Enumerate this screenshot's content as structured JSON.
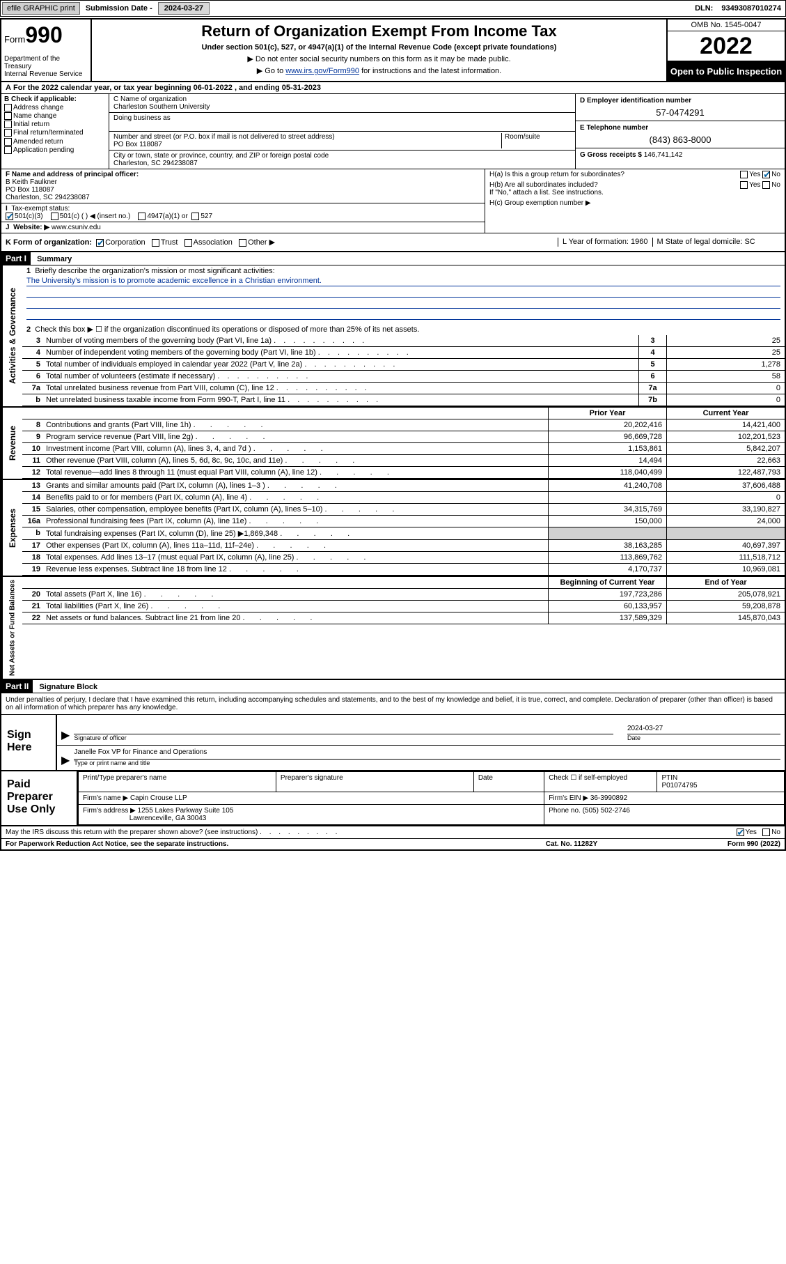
{
  "topbar": {
    "efile": "efile GRAPHIC print",
    "submission_label": "Submission Date - ",
    "submission_date": "2024-03-27",
    "dln_label": "DLN: ",
    "dln": "93493087010274"
  },
  "header": {
    "form_small": "Form",
    "form_big": "990",
    "title": "Return of Organization Exempt From Income Tax",
    "subtitle": "Under section 501(c), 527, or 4947(a)(1) of the Internal Revenue Code (except private foundations)",
    "note1": "▶ Do not enter social security numbers on this form as it may be made public.",
    "note2_pre": "▶ Go to ",
    "note2_link": "www.irs.gov/Form990",
    "note2_post": " for instructions and the latest information.",
    "dept": "Department of the Treasury\nInternal Revenue Service",
    "omb": "OMB No. 1545-0047",
    "year": "2022",
    "inspect": "Open to Public Inspection"
  },
  "period": {
    "text": "For the 2022 calendar year, or tax year beginning 06-01-2022    , and ending 05-31-2023",
    "prefix": "A"
  },
  "boxB": {
    "hdr": "B Check if applicable:",
    "items": [
      "Address change",
      "Name change",
      "Initial return",
      "Final return/terminated",
      "Amended return",
      "Application pending"
    ]
  },
  "boxC": {
    "name_label": "C Name of organization",
    "name": "Charleston Southern University",
    "dba_label": "Doing business as",
    "dba": "",
    "street_label": "Number and street (or P.O. box if mail is not delivered to street address)",
    "room_label": "Room/suite",
    "street": "PO Box 118087",
    "city_label": "City or town, state or province, country, and ZIP or foreign postal code",
    "city": "Charleston, SC  294238087"
  },
  "boxD": {
    "label": "D Employer identification number",
    "value": "57-0474291"
  },
  "boxE": {
    "label": "E Telephone number",
    "value": "(843) 863-8000"
  },
  "boxG": {
    "label": "G Gross receipts $",
    "value": "146,741,142"
  },
  "boxF": {
    "label": "F Name and address of principal officer:",
    "name": "B Keith Faulkner",
    "addr1": "PO Box 118087",
    "addr2": "Charleston, SC  294238087"
  },
  "boxI": {
    "label": "Tax-exempt status:",
    "opt1": "501(c)(3)",
    "opt2": "501(c) (  ) ◀ (insert no.)",
    "opt3": "4947(a)(1) or",
    "opt4": "527"
  },
  "boxJ": {
    "label": "Website: ▶",
    "value": "www.csuniv.edu"
  },
  "boxH": {
    "a": "H(a)  Is this a group return for subordinates?",
    "b": "H(b)  Are all subordinates included?",
    "b_note": "If \"No,\" attach a list. See instructions.",
    "c": "H(c)  Group exemption number ▶",
    "yes": "Yes",
    "no": "No"
  },
  "boxK": {
    "label": "K Form of organization:",
    "opts": [
      "Corporation",
      "Trust",
      "Association",
      "Other ▶"
    ],
    "L": "L Year of formation: 1960",
    "M": "M State of legal domicile: SC"
  },
  "partI": {
    "bar": "Part I",
    "title": "Summary"
  },
  "summary": {
    "q1_label": "1",
    "q1": "Briefly describe the organization's mission or most significant activities:",
    "q1_ans": "The University's mission is to promote academic excellence in a Christian environment.",
    "q2_label": "2",
    "q2": "Check this box ▶ ☐  if the organization discontinued its operations or disposed of more than 25% of its net assets.",
    "lines_single": [
      {
        "n": "3",
        "t": "Number of voting members of the governing body (Part VI, line 1a)",
        "box": "3",
        "v": "25"
      },
      {
        "n": "4",
        "t": "Number of independent voting members of the governing body (Part VI, line 1b)",
        "box": "4",
        "v": "25"
      },
      {
        "n": "5",
        "t": "Total number of individuals employed in calendar year 2022 (Part V, line 2a)",
        "box": "5",
        "v": "1,278"
      },
      {
        "n": "6",
        "t": "Total number of volunteers (estimate if necessary)",
        "box": "6",
        "v": "58"
      },
      {
        "n": "7a",
        "t": "Total unrelated business revenue from Part VIII, column (C), line 12",
        "box": "7a",
        "v": "0"
      },
      {
        "n": "b",
        "t": "Net unrelated business taxable income from Form 990-T, Part I, line 11",
        "box": "7b",
        "v": "0"
      }
    ]
  },
  "yearhdr": {
    "prior": "Prior Year",
    "current": "Current Year",
    "boy": "Beginning of Current Year",
    "eoy": "End of Year"
  },
  "revenue": [
    {
      "n": "8",
      "t": "Contributions and grants (Part VIII, line 1h)",
      "p": "20,202,416",
      "c": "14,421,400"
    },
    {
      "n": "9",
      "t": "Program service revenue (Part VIII, line 2g)",
      "p": "96,669,728",
      "c": "102,201,523"
    },
    {
      "n": "10",
      "t": "Investment income (Part VIII, column (A), lines 3, 4, and 7d )",
      "p": "1,153,861",
      "c": "5,842,207"
    },
    {
      "n": "11",
      "t": "Other revenue (Part VIII, column (A), lines 5, 6d, 8c, 9c, 10c, and 11e)",
      "p": "14,494",
      "c": "22,663"
    },
    {
      "n": "12",
      "t": "Total revenue—add lines 8 through 11 (must equal Part VIII, column (A), line 12)",
      "p": "118,040,499",
      "c": "122,487,793"
    }
  ],
  "expenses": [
    {
      "n": "13",
      "t": "Grants and similar amounts paid (Part IX, column (A), lines 1–3 )",
      "p": "41,240,708",
      "c": "37,606,488"
    },
    {
      "n": "14",
      "t": "Benefits paid to or for members (Part IX, column (A), line 4)",
      "p": "",
      "c": "0"
    },
    {
      "n": "15",
      "t": "Salaries, other compensation, employee benefits (Part IX, column (A), lines 5–10)",
      "p": "34,315,769",
      "c": "33,190,827"
    },
    {
      "n": "16a",
      "t": "Professional fundraising fees (Part IX, column (A), line 11e)",
      "p": "150,000",
      "c": "24,000"
    },
    {
      "n": "b",
      "t": "Total fundraising expenses (Part IX, column (D), line 25) ▶1,869,348",
      "p": "SHADE",
      "c": "SHADE"
    },
    {
      "n": "17",
      "t": "Other expenses (Part IX, column (A), lines 11a–11d, 11f–24e)",
      "p": "38,163,285",
      "c": "40,697,397"
    },
    {
      "n": "18",
      "t": "Total expenses. Add lines 13–17 (must equal Part IX, column (A), line 25)",
      "p": "113,869,762",
      "c": "111,518,712"
    },
    {
      "n": "19",
      "t": "Revenue less expenses. Subtract line 18 from line 12",
      "p": "4,170,737",
      "c": "10,969,081"
    }
  ],
  "netassets": [
    {
      "n": "20",
      "t": "Total assets (Part X, line 16)",
      "p": "197,723,286",
      "c": "205,078,921"
    },
    {
      "n": "21",
      "t": "Total liabilities (Part X, line 26)",
      "p": "60,133,957",
      "c": "59,208,878"
    },
    {
      "n": "22",
      "t": "Net assets or fund balances. Subtract line 21 from line 20",
      "p": "137,589,329",
      "c": "145,870,043"
    }
  ],
  "vlabels": {
    "gov": "Activities & Governance",
    "rev": "Revenue",
    "exp": "Expenses",
    "net": "Net Assets or Fund Balances"
  },
  "partII": {
    "bar": "Part II",
    "title": "Signature Block"
  },
  "declaration": "Under penalties of perjury, I declare that I have examined this return, including accompanying schedules and statements, and to the best of my knowledge and belief, it is true, correct, and complete. Declaration of preparer (other than officer) is based on all information of which preparer has any knowledge.",
  "sign": {
    "label": "Sign Here",
    "sig_officer": "Signature of officer",
    "date_label": "Date",
    "date": "2024-03-27",
    "name": "Janelle Fox  VP for Finance and Operations",
    "name_label": "Type or print name and title"
  },
  "preparer": {
    "label": "Paid Preparer Use Only",
    "h1": "Print/Type preparer's name",
    "h2": "Preparer's signature",
    "h3": "Date",
    "h4a": "Check ☐ if self-employed",
    "h4b": "PTIN",
    "ptin": "P01074795",
    "firm_label": "Firm's name    ▶",
    "firm": "Capin Crouse LLP",
    "ein_label": "Firm's EIN ▶",
    "ein": "36-3990892",
    "addr_label": "Firm's address ▶",
    "addr1": "1255 Lakes Parkway Suite 105",
    "addr2": "Lawrenceville, GA  30043",
    "phone_label": "Phone no.",
    "phone": "(505) 502-2746"
  },
  "discuss": {
    "text": "May the IRS discuss this return with the preparer shown above? (see instructions)",
    "yes": "Yes",
    "no": "No"
  },
  "footer": {
    "left": "For Paperwork Reduction Act Notice, see the separate instructions.",
    "mid": "Cat. No. 11282Y",
    "right": "Form 990 (2022)"
  }
}
